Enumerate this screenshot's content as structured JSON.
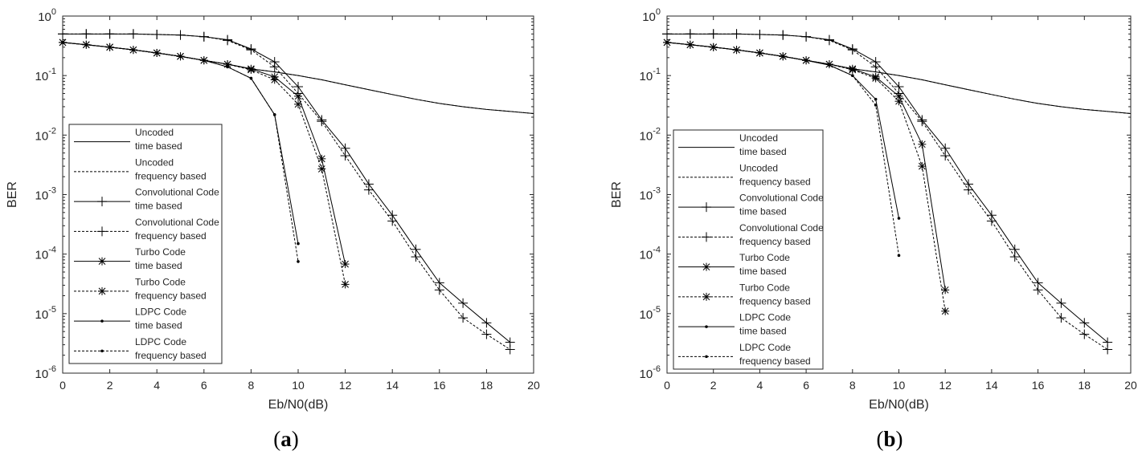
{
  "chart_data": [
    {
      "type": "line",
      "panel_label": "a",
      "xlabel": "Eb/N0(dB)",
      "ylabel": "BER",
      "xlim": [
        0,
        20
      ],
      "ylim": [
        1e-06,
        1
      ],
      "y_scale": "log",
      "x_ticks": [
        "0",
        "2",
        "4",
        "6",
        "8",
        "10",
        "12",
        "14",
        "16",
        "18",
        "20"
      ],
      "y_ticks": [
        {
          "base": "10",
          "exp": "0"
        },
        {
          "base": "10",
          "exp": "-1"
        },
        {
          "base": "10",
          "exp": "-2"
        },
        {
          "base": "10",
          "exp": "-3"
        },
        {
          "base": "10",
          "exp": "-4"
        },
        {
          "base": "10",
          "exp": "-5"
        },
        {
          "base": "10",
          "exp": "-6"
        }
      ],
      "grid": false,
      "legend_position": "lower-left",
      "series": [
        {
          "name": [
            "Uncoded",
            "time based"
          ],
          "style": "solid",
          "marker": "none",
          "x": [
            0,
            1,
            2,
            3,
            4,
            5,
            6,
            7,
            8,
            9,
            10,
            11,
            12,
            13,
            14,
            15,
            16,
            17,
            18,
            19,
            20
          ],
          "y": [
            0.36,
            0.33,
            0.3,
            0.27,
            0.24,
            0.21,
            0.18,
            0.155,
            0.13,
            0.115,
            0.1,
            0.085,
            0.07,
            0.058,
            0.048,
            0.04,
            0.034,
            0.03,
            0.027,
            0.025,
            0.023
          ]
        },
        {
          "name": [
            "Uncoded",
            "frequency based"
          ],
          "style": "dashed",
          "marker": "none",
          "x": [
            0,
            1,
            2,
            3,
            4,
            5,
            6,
            7,
            8,
            9,
            10,
            11,
            12,
            13,
            14,
            15,
            16,
            17,
            18,
            19,
            20
          ],
          "y": [
            0.36,
            0.33,
            0.3,
            0.27,
            0.24,
            0.21,
            0.18,
            0.155,
            0.13,
            0.115,
            0.1,
            0.085,
            0.07,
            0.058,
            0.048,
            0.04,
            0.034,
            0.03,
            0.027,
            0.025,
            0.023
          ]
        },
        {
          "name": [
            "Convolutional Code",
            "time based"
          ],
          "style": "solid",
          "marker": "plus",
          "x": [
            0,
            1,
            2,
            3,
            4,
            5,
            6,
            7,
            8,
            9,
            10,
            11,
            12,
            13,
            14,
            15,
            16,
            17,
            18,
            19
          ],
          "y": [
            0.5,
            0.5,
            0.5,
            0.5,
            0.49,
            0.48,
            0.45,
            0.4,
            0.28,
            0.17,
            0.065,
            0.018,
            0.006,
            0.0015,
            0.00045,
            0.00012,
            3.3e-05,
            1.5e-05,
            7e-06,
            3.3e-06
          ]
        },
        {
          "name": [
            "Convolutional Code",
            "frequency based"
          ],
          "style": "dashed",
          "marker": "plus",
          "x": [
            0,
            1,
            2,
            3,
            4,
            5,
            6,
            7,
            8,
            9,
            10,
            11,
            12,
            13,
            14,
            15,
            16,
            17,
            18,
            19
          ],
          "y": [
            0.5,
            0.5,
            0.5,
            0.5,
            0.49,
            0.48,
            0.45,
            0.39,
            0.27,
            0.14,
            0.05,
            0.017,
            0.0045,
            0.0012,
            0.00036,
            9e-05,
            2.5e-05,
            8.5e-06,
            4.5e-06,
            2.5e-06
          ]
        },
        {
          "name": [
            "Turbo Code",
            "time based"
          ],
          "style": "solid",
          "marker": "star",
          "x": [
            0,
            1,
            2,
            3,
            4,
            5,
            6,
            7,
            8,
            9,
            10,
            11,
            12
          ],
          "y": [
            0.36,
            0.33,
            0.3,
            0.27,
            0.24,
            0.21,
            0.18,
            0.155,
            0.13,
            0.095,
            0.045,
            0.004,
            6.8e-05
          ]
        },
        {
          "name": [
            "Turbo Code",
            "frequency based"
          ],
          "style": "dashed",
          "marker": "star",
          "x": [
            0,
            1,
            2,
            3,
            4,
            5,
            6,
            7,
            8,
            9,
            10,
            11,
            12
          ],
          "y": [
            0.36,
            0.33,
            0.3,
            0.27,
            0.24,
            0.21,
            0.18,
            0.155,
            0.125,
            0.085,
            0.033,
            0.0027,
            3.1e-05
          ]
        },
        {
          "name": [
            "LDPC Code",
            "time based"
          ],
          "style": "solid",
          "marker": "dot",
          "x": [
            0,
            1,
            2,
            3,
            4,
            5,
            6,
            7,
            8,
            9,
            10
          ],
          "y": [
            0.36,
            0.33,
            0.3,
            0.27,
            0.24,
            0.21,
            0.18,
            0.14,
            0.09,
            0.022,
            0.00015
          ]
        },
        {
          "name": [
            "LDPC Code",
            "frequency based"
          ],
          "style": "dashed",
          "marker": "dot",
          "x": [
            0,
            1,
            2,
            3,
            4,
            5,
            6,
            7,
            8,
            9,
            10
          ],
          "y": [
            0.36,
            0.33,
            0.3,
            0.27,
            0.24,
            0.21,
            0.18,
            0.14,
            0.09,
            0.022,
            7.5e-05
          ]
        }
      ]
    },
    {
      "type": "line",
      "panel_label": "b",
      "xlabel": "Eb/N0(dB)",
      "ylabel": "BER",
      "xlim": [
        0,
        20
      ],
      "ylim": [
        1e-06,
        1
      ],
      "y_scale": "log",
      "x_ticks": [
        "0",
        "2",
        "4",
        "6",
        "8",
        "10",
        "12",
        "14",
        "16",
        "18",
        "20"
      ],
      "y_ticks": [
        {
          "base": "10",
          "exp": "0"
        },
        {
          "base": "10",
          "exp": "-1"
        },
        {
          "base": "10",
          "exp": "-2"
        },
        {
          "base": "10",
          "exp": "-3"
        },
        {
          "base": "10",
          "exp": "-4"
        },
        {
          "base": "10",
          "exp": "-5"
        },
        {
          "base": "10",
          "exp": "-6"
        }
      ],
      "grid": false,
      "legend_position": "lower-left",
      "series": [
        {
          "name": [
            "Uncoded",
            "time based"
          ],
          "style": "solid",
          "marker": "none",
          "x": [
            0,
            1,
            2,
            3,
            4,
            5,
            6,
            7,
            8,
            9,
            10,
            11,
            12,
            13,
            14,
            15,
            16,
            17,
            18,
            19,
            20
          ],
          "y": [
            0.36,
            0.33,
            0.3,
            0.27,
            0.24,
            0.21,
            0.18,
            0.155,
            0.13,
            0.115,
            0.1,
            0.085,
            0.07,
            0.058,
            0.048,
            0.04,
            0.034,
            0.03,
            0.027,
            0.025,
            0.023
          ]
        },
        {
          "name": [
            "Uncoded",
            "frequency based"
          ],
          "style": "dashed",
          "marker": "none",
          "x": [
            0,
            1,
            2,
            3,
            4,
            5,
            6,
            7,
            8,
            9,
            10,
            11,
            12,
            13,
            14,
            15,
            16,
            17,
            18,
            19,
            20
          ],
          "y": [
            0.36,
            0.33,
            0.3,
            0.27,
            0.24,
            0.21,
            0.18,
            0.155,
            0.13,
            0.115,
            0.1,
            0.085,
            0.07,
            0.058,
            0.048,
            0.04,
            0.034,
            0.03,
            0.027,
            0.025,
            0.023
          ]
        },
        {
          "name": [
            "Convolutional Code",
            "time based"
          ],
          "style": "solid",
          "marker": "plus",
          "x": [
            0,
            1,
            2,
            3,
            4,
            5,
            6,
            7,
            8,
            9,
            10,
            11,
            12,
            13,
            14,
            15,
            16,
            17,
            18,
            19
          ],
          "y": [
            0.5,
            0.5,
            0.5,
            0.5,
            0.49,
            0.48,
            0.45,
            0.4,
            0.28,
            0.17,
            0.065,
            0.018,
            0.006,
            0.0015,
            0.00045,
            0.00012,
            3.3e-05,
            1.5e-05,
            7e-06,
            3.3e-06
          ]
        },
        {
          "name": [
            "Convolutional Code",
            "frequency based"
          ],
          "style": "dashed",
          "marker": "plus",
          "x": [
            0,
            1,
            2,
            3,
            4,
            5,
            6,
            7,
            8,
            9,
            10,
            11,
            12,
            13,
            14,
            15,
            16,
            17,
            18,
            19
          ],
          "y": [
            0.5,
            0.5,
            0.5,
            0.5,
            0.49,
            0.48,
            0.45,
            0.39,
            0.27,
            0.14,
            0.05,
            0.017,
            0.0045,
            0.0012,
            0.00036,
            9e-05,
            2.5e-05,
            8.5e-06,
            4.5e-06,
            2.5e-06
          ]
        },
        {
          "name": [
            "Turbo Code",
            "time based"
          ],
          "style": "solid",
          "marker": "star",
          "x": [
            0,
            1,
            2,
            3,
            4,
            5,
            6,
            7,
            8,
            9,
            10,
            11,
            12
          ],
          "y": [
            0.36,
            0.33,
            0.3,
            0.27,
            0.24,
            0.21,
            0.18,
            0.155,
            0.13,
            0.095,
            0.045,
            0.007,
            2.5e-05
          ]
        },
        {
          "name": [
            "Turbo Code",
            "frequency based"
          ],
          "style": "dashed",
          "marker": "star",
          "x": [
            0,
            1,
            2,
            3,
            4,
            5,
            6,
            7,
            8,
            9,
            10,
            11,
            12
          ],
          "y": [
            0.36,
            0.33,
            0.3,
            0.27,
            0.24,
            0.21,
            0.18,
            0.155,
            0.125,
            0.09,
            0.037,
            0.003,
            1.1e-05
          ]
        },
        {
          "name": [
            "LDPC Code",
            "time based"
          ],
          "style": "solid",
          "marker": "dot",
          "x": [
            0,
            1,
            2,
            3,
            4,
            5,
            6,
            7,
            8,
            9,
            10
          ],
          "y": [
            0.36,
            0.33,
            0.3,
            0.27,
            0.24,
            0.21,
            0.18,
            0.15,
            0.1,
            0.04,
            0.0004
          ]
        },
        {
          "name": [
            "LDPC Code",
            "frequency based"
          ],
          "style": "dashed",
          "marker": "dot",
          "x": [
            0,
            1,
            2,
            3,
            4,
            5,
            6,
            7,
            8,
            9,
            10
          ],
          "y": [
            0.36,
            0.33,
            0.3,
            0.27,
            0.24,
            0.21,
            0.18,
            0.15,
            0.1,
            0.032,
            9.5e-05
          ]
        }
      ]
    }
  ]
}
